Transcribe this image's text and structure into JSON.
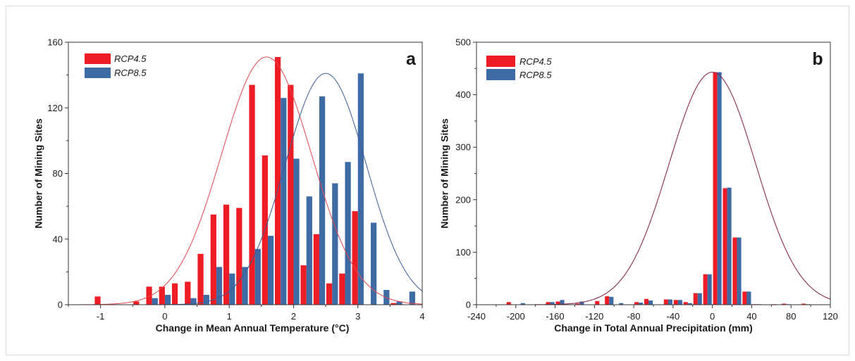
{
  "chart_data": [
    {
      "type": "bar",
      "panel_label": "a",
      "xlabel": "Change in Mean Annual Temperature (°C)",
      "ylabel": "Number of Mining Sites",
      "xlim": [
        -1.5,
        4
      ],
      "ylim": [
        0,
        160
      ],
      "xticks": [
        -1,
        0,
        1,
        2,
        3,
        4
      ],
      "yticks": [
        0,
        40,
        80,
        120,
        160
      ],
      "bin_width": 0.2,
      "x": [
        -1,
        -0.8,
        -0.6,
        -0.4,
        -0.2,
        0,
        0.2,
        0.4,
        0.6,
        0.8,
        1,
        1.2,
        1.4,
        1.6,
        1.8,
        2,
        2.2,
        2.4,
        2.6,
        2.8,
        3,
        3.2,
        3.4,
        3.6,
        3.8
      ],
      "series": [
        {
          "name": "RCP4.5",
          "color": "#ee1c25",
          "values": [
            5,
            0,
            0,
            2,
            11,
            11,
            13,
            14,
            31,
            55,
            61,
            59,
            134,
            91,
            151,
            134,
            24,
            43,
            13,
            19,
            57,
            0,
            0,
            1,
            0
          ],
          "fit": {
            "mean": 1.58,
            "sd": 0.7,
            "peak": 151,
            "color": "#e4474d"
          }
        },
        {
          "name": "RCP8.5",
          "color": "#3f6ba5",
          "values": [
            0,
            0,
            0,
            0,
            4,
            6,
            0,
            4,
            6,
            23,
            19,
            23,
            34,
            42,
            126,
            89,
            66,
            127,
            74,
            87,
            141,
            50,
            9,
            2,
            8
          ],
          "fit": {
            "mean": 2.5,
            "sd": 0.63,
            "peak": 141,
            "color": "#3a5a95"
          }
        }
      ],
      "legend": "top-left",
      "grid": false
    },
    {
      "type": "bar",
      "panel_label": "b",
      "xlabel": "Change in Total Annual Precipitation (mm)",
      "ylabel": "Number of Mining Sites",
      "xlim": [
        -240,
        120
      ],
      "ylim": [
        0,
        500
      ],
      "xticks": [
        -240,
        -200,
        -160,
        -120,
        -80,
        -40,
        0,
        40,
        80,
        120
      ],
      "yticks": [
        0,
        100,
        200,
        300,
        400,
        500
      ],
      "bin_width": 10,
      "x": [
        -205,
        -195,
        -185,
        -175,
        -165,
        -155,
        -145,
        -135,
        -125,
        -115,
        -105,
        -95,
        -85,
        -75,
        -65,
        -55,
        -45,
        -35,
        -25,
        -15,
        -5,
        5,
        15,
        25,
        35,
        45,
        55,
        65,
        75,
        85,
        95
      ],
      "series": [
        {
          "name": "RCP4.5",
          "color": "#ee1c25",
          "values": [
            5,
            0,
            0,
            0,
            5,
            6,
            0,
            2,
            0,
            7,
            16,
            0,
            0,
            5,
            11,
            0,
            10,
            9,
            5,
            22,
            58,
            443,
            222,
            128,
            25,
            1,
            0,
            1,
            2,
            0,
            2
          ],
          "fit": {
            "mean": 0,
            "sd": 44,
            "peak": 443,
            "color": "#c0283c"
          }
        },
        {
          "name": "RCP8.5",
          "color": "#3f6ba5",
          "values": [
            0,
            3,
            0,
            0,
            5,
            9,
            0,
            6,
            0,
            0,
            15,
            3,
            0,
            4,
            8,
            0,
            10,
            9,
            3,
            22,
            58,
            443,
            223,
            128,
            25,
            1,
            0,
            0,
            1,
            0,
            1
          ],
          "fit": {
            "mean": 0,
            "sd": 44,
            "peak": 443,
            "color": "#5a2f66"
          }
        }
      ],
      "legend": "top-left",
      "grid": false
    }
  ]
}
